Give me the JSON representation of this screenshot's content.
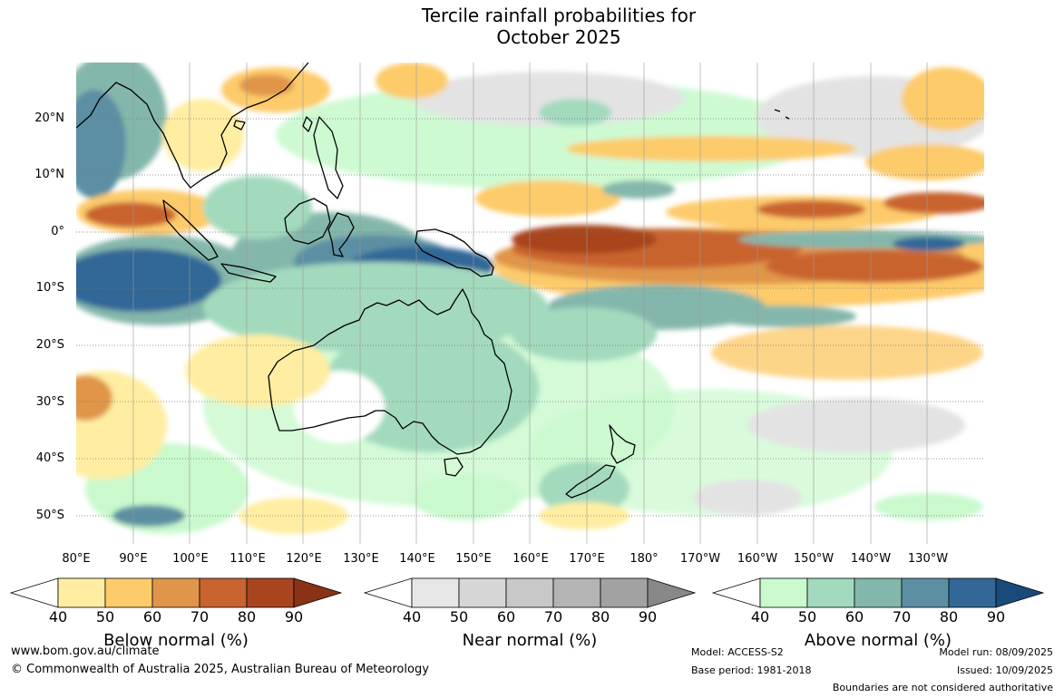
{
  "title_line1": "Tercile rainfall probabilities for",
  "title_line2": "October 2025",
  "lat_labels": [
    "20°N",
    "10°N",
    "0°",
    "10°S",
    "20°S",
    "30°S",
    "40°S",
    "50°S"
  ],
  "lon_labels": [
    "80°E",
    "90°E",
    "100°E",
    "110°E",
    "120°E",
    "130°E",
    "140°E",
    "150°E",
    "160°E",
    "170°E",
    "180°",
    "170°W",
    "160°W",
    "150°W",
    "140°W",
    "130°W"
  ],
  "legends": [
    {
      "title": "Below normal (%)",
      "ticks": [
        "40",
        "50",
        "60",
        "70",
        "80",
        "90"
      ],
      "colors": [
        "#ffeea1",
        "#fdcb6a",
        "#e0954a",
        "#c9632f",
        "#a8451f",
        "#8a3216"
      ]
    },
    {
      "title": "Near normal (%)",
      "ticks": [
        "40",
        "50",
        "60",
        "70",
        "80",
        "90"
      ],
      "colors": [
        "#e6e6e6",
        "#d6d6d6",
        "#c8c8c8",
        "#b4b4b4",
        "#a2a2a2",
        "#888888"
      ]
    },
    {
      "title": "Above normal (%)",
      "ticks": [
        "40",
        "50",
        "60",
        "70",
        "80",
        "90"
      ],
      "colors": [
        "#c9f9cd",
        "#a3dabe",
        "#84b7ab",
        "#5c8fa3",
        "#336797",
        "#1a4a7a"
      ]
    }
  ],
  "footer": {
    "website": "www.bom.gov.au/climate",
    "copyright": "© Commonwealth of Australia 2025, Australian Bureau of Meteorology",
    "model": "Model: ACCESS-S2",
    "base_period": "Base period: 1981-2018",
    "model_run": "Model run: 08/09/2025",
    "issued": "Issued: 10/09/2025",
    "disclaimer": "Boundaries are not considered authoritative"
  }
}
